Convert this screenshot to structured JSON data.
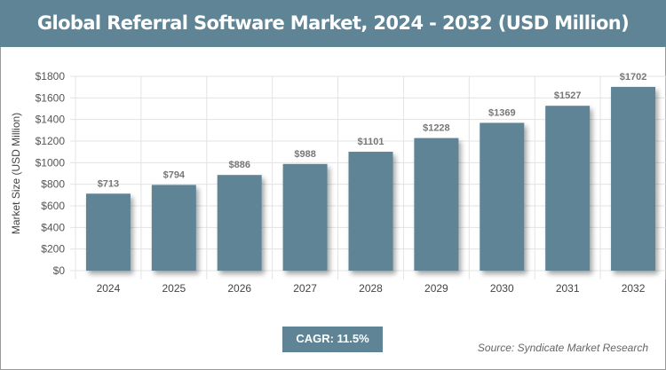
{
  "title": "Global Referral Software Market, 2024 - 2032 (USD Million)",
  "cagr": "CAGR: 11.5%",
  "source": "Source: Syndicate Market Research",
  "colors": {
    "bar": "#5f8495",
    "header": "#5f8495"
  },
  "chart_data": {
    "type": "bar",
    "title": "Global Referral Software Market, 2024 - 2032 (USD Million)",
    "xlabel": "",
    "ylabel": "Market Size (USD Million)",
    "categories": [
      "2024",
      "2025",
      "2026",
      "2027",
      "2028",
      "2029",
      "2030",
      "2031",
      "2032"
    ],
    "values": [
      713,
      794,
      886,
      988,
      1101,
      1228,
      1369,
      1527,
      1702
    ],
    "data_labels": [
      "$713",
      "$794",
      "$886",
      "$988",
      "$1101",
      "$1228",
      "$1369",
      "$1527",
      "$1702"
    ],
    "ylim": [
      0,
      1800
    ],
    "yticks": [
      0,
      200,
      400,
      600,
      800,
      1000,
      1200,
      1400,
      1600,
      1800
    ],
    "ytick_labels": [
      "$0",
      "$200",
      "$400",
      "$600",
      "$800",
      "$1000",
      "$1200",
      "$1400",
      "$1600",
      "$1800"
    ],
    "grid": true
  }
}
